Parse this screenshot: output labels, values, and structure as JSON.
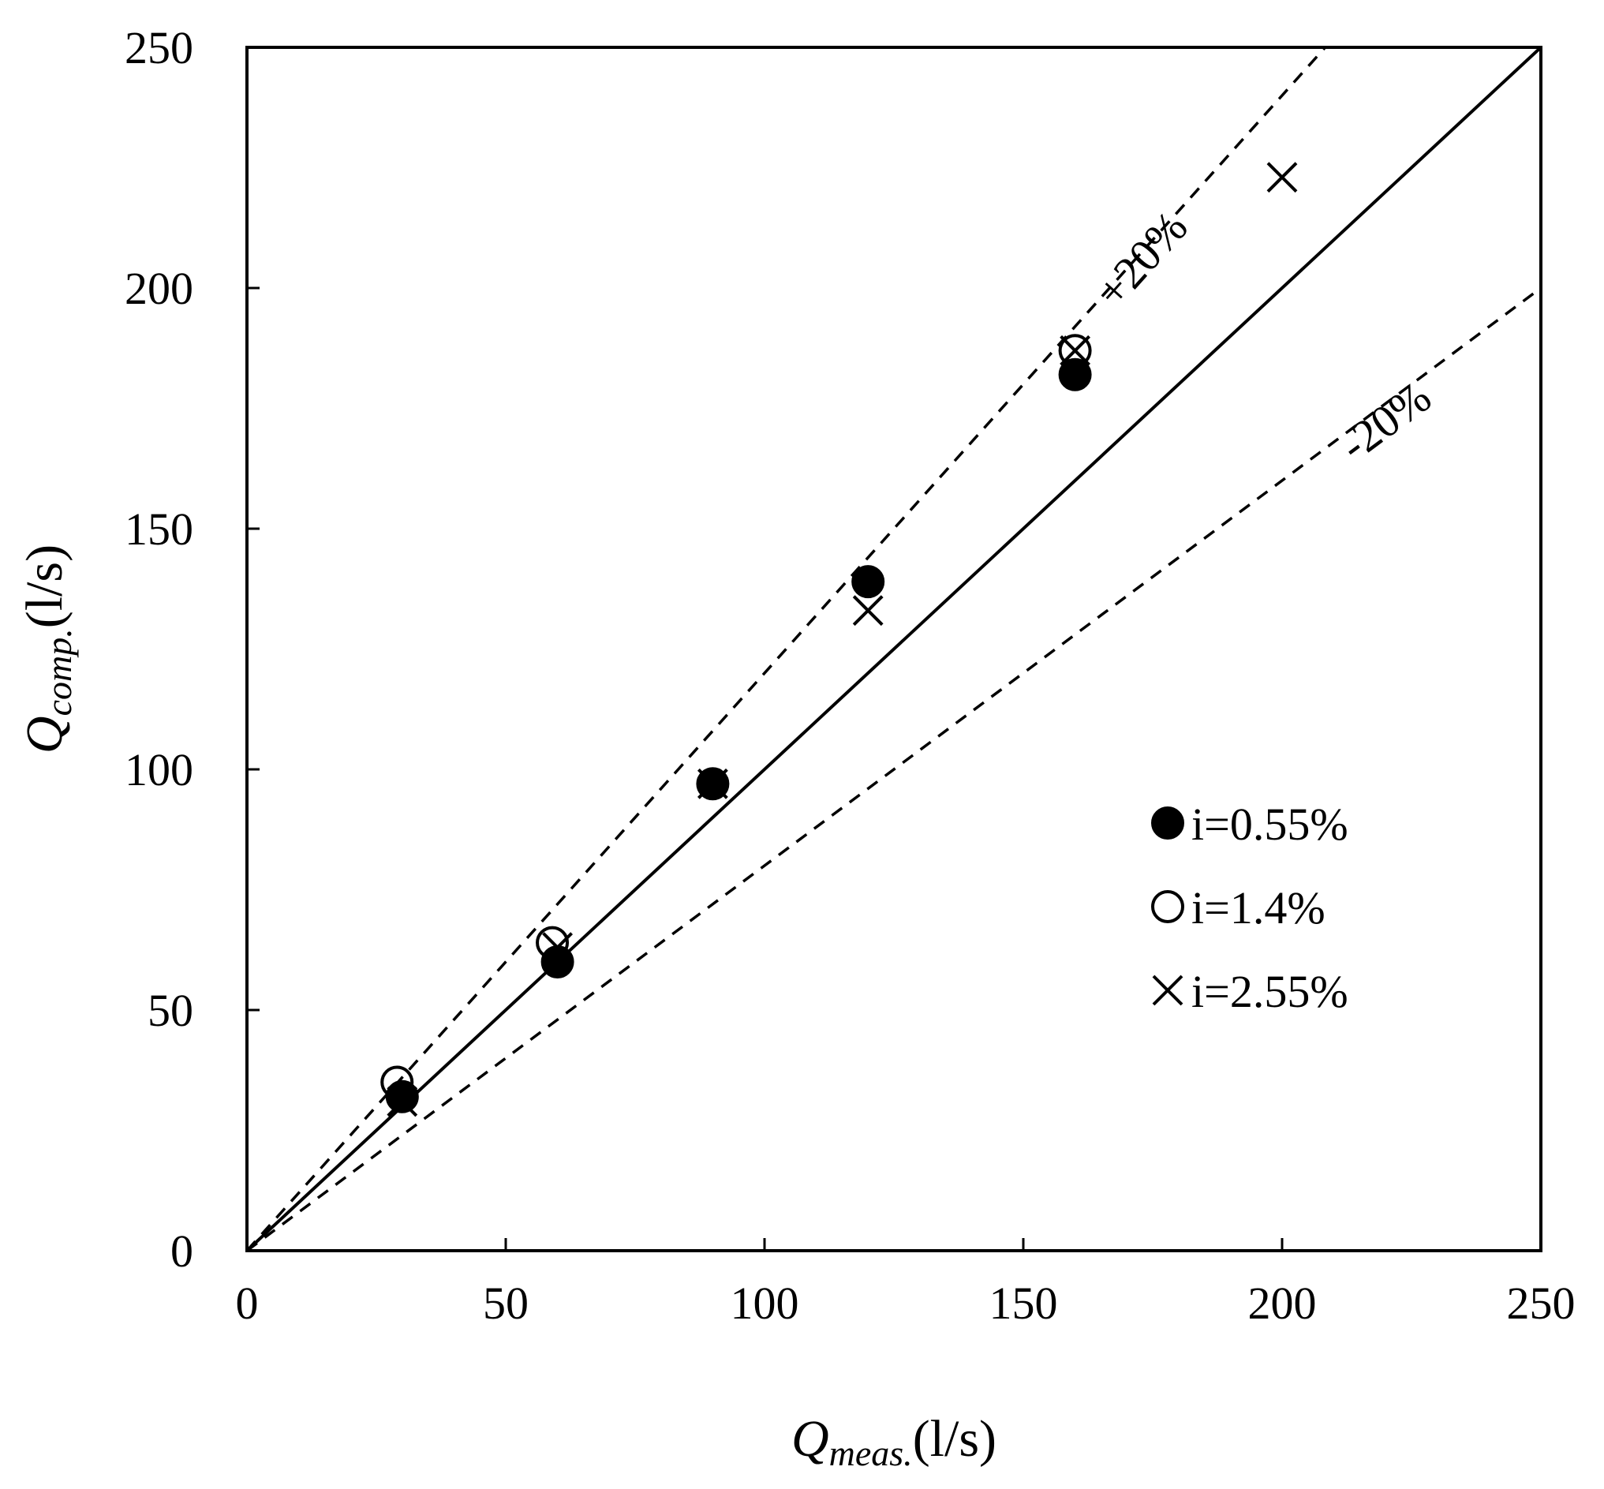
{
  "chart_data": {
    "type": "scatter",
    "title": "",
    "xlabel": {
      "symbol": "Q",
      "subscript": "meas.",
      "unit": "(l/s)"
    },
    "ylabel": {
      "symbol": "Q",
      "subscript": "comp.",
      "unit": "(l/s)"
    },
    "xlim": [
      0,
      250
    ],
    "ylim": [
      0,
      250
    ],
    "xticks": [
      0,
      50,
      100,
      150,
      200,
      250
    ],
    "yticks": [
      0,
      50,
      100,
      150,
      200,
      250
    ],
    "grid": false,
    "legend_position": "right",
    "reference_lines": [
      {
        "label": "",
        "slope": 1.0,
        "style": "solid"
      },
      {
        "label": "+20%",
        "slope": 1.2,
        "style": "dashed"
      },
      {
        "label": "-20%",
        "slope": 0.8,
        "style": "dashed"
      }
    ],
    "series": [
      {
        "name": "i=0.55%",
        "marker": "filled-circle",
        "x": [
          30,
          60,
          90,
          120,
          160
        ],
        "y": [
          32,
          60,
          97,
          139,
          182
        ]
      },
      {
        "name": "i=1.4%",
        "marker": "open-circle",
        "x": [
          29,
          59,
          160
        ],
        "y": [
          35,
          64,
          187
        ]
      },
      {
        "name": "i=2.55%",
        "marker": "cross",
        "x": [
          30,
          60,
          90,
          120,
          160,
          200
        ],
        "y": [
          31,
          63,
          97,
          133,
          187,
          223
        ]
      }
    ]
  },
  "colors": {
    "ink": "#000000",
    "background": "#ffffff"
  }
}
